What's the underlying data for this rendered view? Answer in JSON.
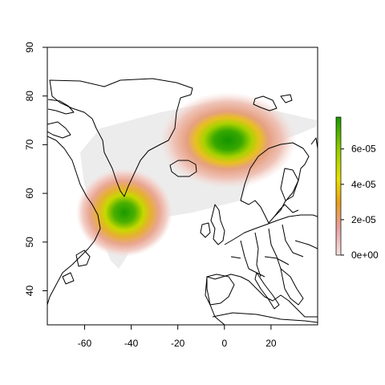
{
  "chart_data": {
    "type": "heatmap",
    "title": "",
    "xlabel": "",
    "ylabel": "",
    "xlim": [
      -76,
      40
    ],
    "ylim": [
      33,
      90
    ],
    "x_ticks": [
      -60,
      -40,
      -20,
      0,
      20
    ],
    "x_tick_labels": [
      "-60",
      "-40",
      "-20",
      "0",
      "20"
    ],
    "y_ticks": [
      40,
      50,
      60,
      70,
      80,
      90
    ],
    "y_tick_labels": [
      "40",
      "50",
      "60",
      "70",
      "80",
      "90"
    ],
    "grid": false,
    "legend_position": "right",
    "colorbar": {
      "min": 0,
      "max": 7.8e-05,
      "ticks": [
        0,
        2e-05,
        4e-05,
        6e-05
      ],
      "tick_labels": [
        "0e+00",
        "2e-05",
        "4e-05",
        "6e-05"
      ],
      "colors": [
        "#f7e0e0",
        "#e8a0a0",
        "#e6a020",
        "#e8e000",
        "#9ad000",
        "#1a9a00"
      ]
    },
    "density_peaks": [
      {
        "lon": -42.5,
        "lat": 56.2,
        "value": 5.5e-05
      },
      {
        "lon": -0.5,
        "lat": 71.0,
        "value": 7.5e-05
      }
    ],
    "support_region_color": "#ececec"
  }
}
